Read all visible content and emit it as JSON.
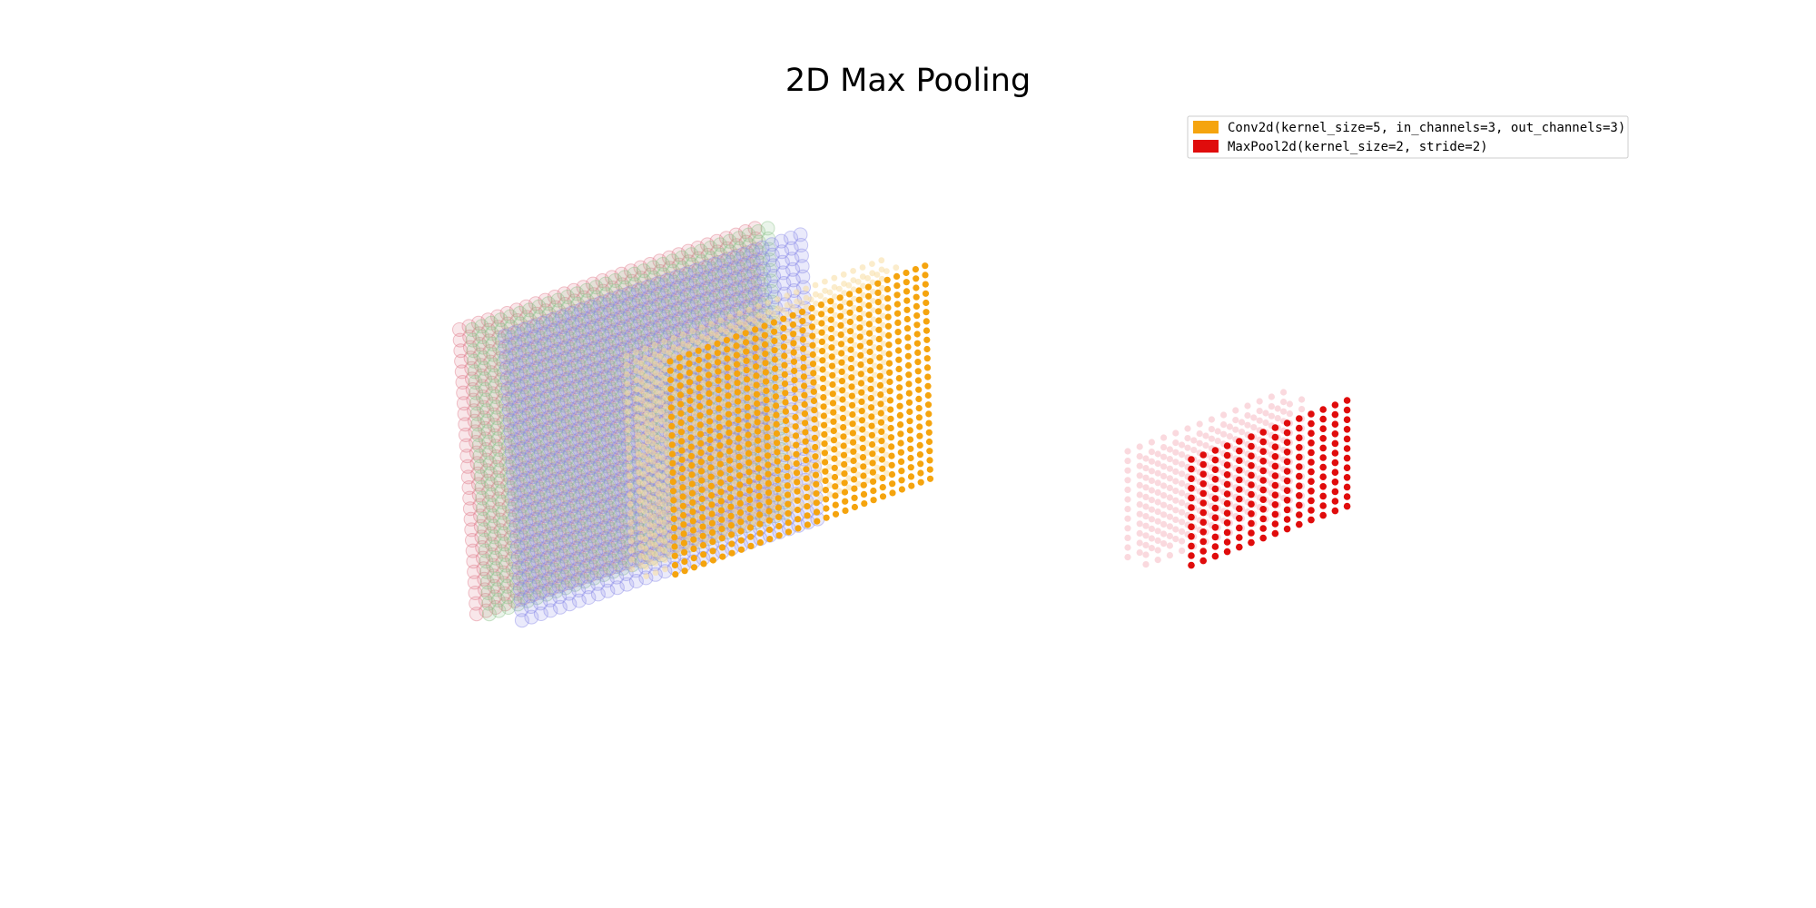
{
  "title": "2D Max Pooling",
  "legend": {
    "placement": "top-right",
    "items": [
      {
        "label": "Conv2d(kernel_size=5, in_channels=3, out_channels=3)",
        "color": "#f5a40e"
      },
      {
        "label": "MaxPool2d(kernel_size=2, stride=2)",
        "color": "#e00c0c"
      }
    ]
  },
  "layers": {
    "input": {
      "channels": 3,
      "rows": 28,
      "cols": 32,
      "colors": [
        "#e07a8a",
        "#8cc48a",
        "#8a8ae8"
      ]
    },
    "conv": {
      "channels": 3,
      "rows": 24,
      "cols": 28,
      "colors": [
        "#f7dca0",
        "#f7dca0",
        "#f5a40e"
      ]
    },
    "pool": {
      "channels": 3,
      "rows": 12,
      "cols": 14,
      "colors": [
        "#f6c0c8",
        "#f6c0c8",
        "#e00c0c"
      ]
    }
  }
}
